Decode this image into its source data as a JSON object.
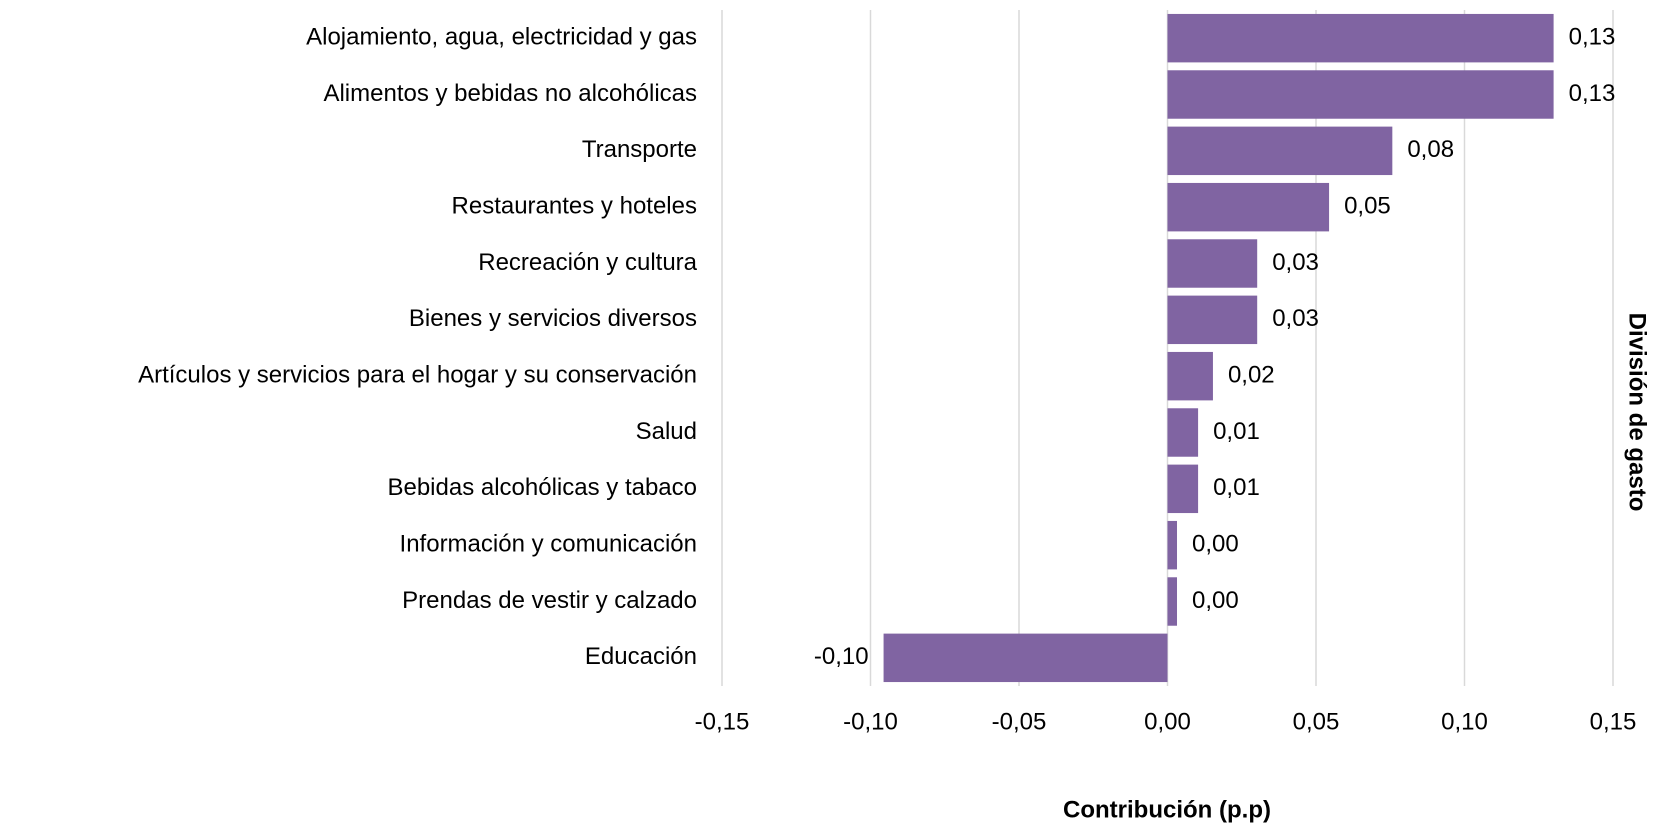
{
  "chart_data": {
    "type": "barh",
    "x_label": "Contribución (p.p)",
    "y_label": "División de gasto",
    "categories": [
      "Alojamiento, agua, electricidad y gas",
      "Alimentos y bebidas no alcohólicas",
      "Transporte",
      "Restaurantes y hoteles",
      "Recreación y cultura",
      "Bienes y servicios diversos",
      "Artículos y servicios para el hogar y su conservación",
      "Salud",
      "Bebidas alcohólicas y tabaco",
      "Información y comunicación",
      "Prendas de vestir y calzado",
      "Educación"
    ],
    "values": [
      0.13,
      0.13,
      0.0757,
      0.0544,
      0.0302,
      0.0302,
      0.0153,
      0.0103,
      0.0103,
      0.0032,
      0.0032,
      -0.0956
    ],
    "value_labels": [
      "0,13",
      "0,13",
      "0,08",
      "0,05",
      "0,03",
      "0,03",
      "0,02",
      "0,01",
      "0,01",
      "0,00",
      "0,00",
      "-0,10"
    ],
    "color": "#8064a2",
    "xlim": [
      -0.15,
      0.15
    ],
    "xticks": [
      {
        "value": -0.15,
        "label": "-0,15"
      },
      {
        "value": -0.1,
        "label": "-0,10"
      },
      {
        "value": -0.05,
        "label": "-0,05"
      },
      {
        "value": 0,
        "label": "0,00"
      },
      {
        "value": 0.05,
        "label": "0,05"
      },
      {
        "value": 0.1,
        "label": "0,10"
      },
      {
        "value": 0.15,
        "label": "0,15"
      }
    ],
    "grid": true
  }
}
